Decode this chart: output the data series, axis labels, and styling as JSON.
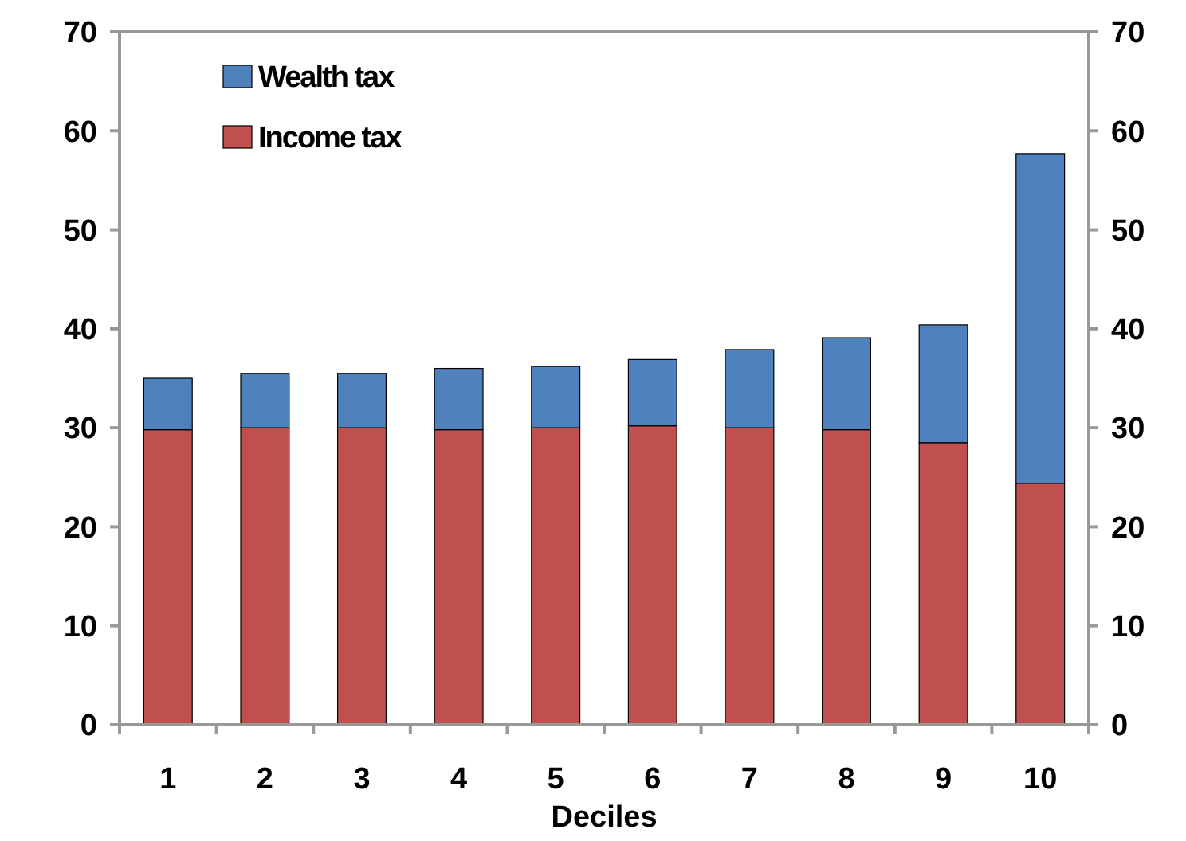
{
  "chart_data": {
    "type": "bar",
    "stacked": true,
    "xlabel": "Deciles",
    "categories": [
      "1",
      "2",
      "3",
      "4",
      "5",
      "6",
      "7",
      "8",
      "9",
      "10"
    ],
    "series": [
      {
        "name": "Income tax",
        "color": "#c0504d",
        "values": [
          29.8,
          30,
          30,
          29.8,
          30,
          30.2,
          30,
          29.8,
          28.5,
          24.4
        ]
      },
      {
        "name": "Wealth tax",
        "color": "#4f81bd",
        "values": [
          5.2,
          5.5,
          5.5,
          6.2,
          6.2,
          6.7,
          7.9,
          9.3,
          11.9,
          33.3
        ]
      }
    ],
    "ylim": [
      0,
      70
    ],
    "yticks": [
      0,
      10,
      20,
      30,
      40,
      50,
      60,
      70
    ],
    "y2lim": [
      0,
      70
    ],
    "y2ticks": [
      0,
      10,
      20,
      30,
      40,
      50,
      60,
      70
    ],
    "grid": false,
    "legend": "top left"
  }
}
